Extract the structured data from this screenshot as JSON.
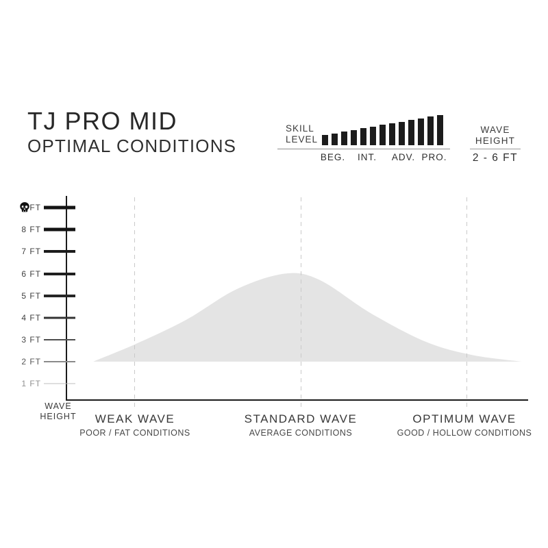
{
  "header": {
    "title": "TJ PRO MID",
    "subtitle": "OPTIMAL CONDITIONS",
    "skill": {
      "label_line1": "SKILL",
      "label_line2": "LEVEL",
      "levels": [
        "BEG.",
        "INT.",
        "ADV.",
        "PRO."
      ],
      "bar_count": 13
    },
    "wave_height": {
      "label_line1": "WAVE",
      "label_line2": "HEIGHT",
      "value": "2 - 6 FT"
    }
  },
  "chart_data": {
    "type": "area",
    "title": "TJ PRO MID — OPTIMAL CONDITIONS",
    "ylabel": "WAVE HEIGHT",
    "axis_label": {
      "line1": "WAVE",
      "line2": "HEIGHT"
    },
    "y_ticks": [
      "+ FT",
      "8 FT",
      "7 FT",
      "6 FT",
      "5 FT",
      "4 FT",
      "3 FT",
      "2 FT",
      "1 FT"
    ],
    "y_tick_values_ft": [
      9,
      8,
      7,
      6,
      5,
      4,
      3,
      2,
      1
    ],
    "x_categories": [
      {
        "label": "WEAK WAVE",
        "sublabel": "POOR / FAT CONDITIONS"
      },
      {
        "label": "STANDARD WAVE",
        "sublabel": "AVERAGE CONDITIONS"
      },
      {
        "label": "OPTIMUM WAVE",
        "sublabel": "GOOD / HOLLOW CONDITIONS"
      }
    ],
    "series": [
      {
        "name": "optimal-conditions-area",
        "baseline_ft": 2,
        "peak_ft": 6,
        "peak_position": "STANDARD WAVE",
        "points": [
          {
            "x_frac": 0.058,
            "ft": 2.0
          },
          {
            "x_frac": 0.15,
            "ft": 2.8
          },
          {
            "x_frac": 0.26,
            "ft": 3.9
          },
          {
            "x_frac": 0.37,
            "ft": 5.3
          },
          {
            "x_frac": 0.475,
            "ft": 6.0
          },
          {
            "x_frac": 0.55,
            "ft": 5.7
          },
          {
            "x_frac": 0.66,
            "ft": 4.2
          },
          {
            "x_frac": 0.78,
            "ft": 2.9
          },
          {
            "x_frac": 0.88,
            "ft": 2.3
          },
          {
            "x_frac": 0.988,
            "ft": 2.0
          }
        ]
      }
    ],
    "legend": false,
    "grid": {
      "vertical_dashed_guides": 3,
      "horizontal_gridlines": false
    },
    "colors": {
      "area_fill": "#e4e4e4",
      "axis": "#1a1a1a",
      "dashed_guide": "#c9c9c9",
      "skill_bars": "#1c1c1c",
      "text": "#3a3a3a"
    },
    "icons": {
      "extreme_height_marker": "skull-icon"
    }
  }
}
